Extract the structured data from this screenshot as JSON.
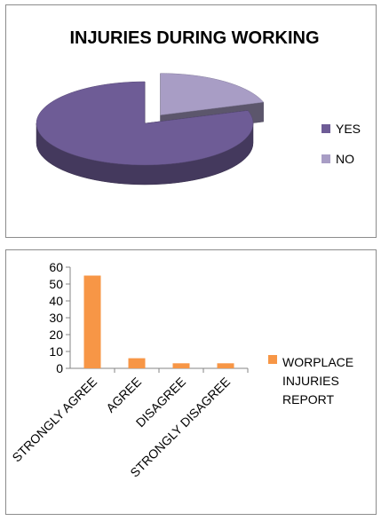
{
  "chart_data": [
    {
      "type": "pie",
      "title": "INJURIES DURING WORKING",
      "categories": [
        "YES",
        "NO"
      ],
      "values": [
        80,
        20
      ],
      "legend_position": "right",
      "colors": [
        "#6e5c96",
        "#a89dc5"
      ],
      "style": "3d-exploded"
    },
    {
      "type": "bar",
      "categories": [
        "STRONGLY AGREE",
        "AGREE",
        "DISAGREE",
        "STRONGLY DISAGREE"
      ],
      "series": [
        {
          "name": "WORPLACE INJURIES REPORT",
          "values": [
            55,
            6,
            3,
            3
          ]
        }
      ],
      "ylim": [
        0,
        60
      ],
      "yticks": [
        0,
        10,
        20,
        30,
        40,
        50,
        60
      ],
      "legend_position": "right",
      "grid": false,
      "colors": [
        "#f79646"
      ]
    }
  ],
  "pie_legend": {
    "items": [
      {
        "label": "YES",
        "color": "#6e5c96"
      },
      {
        "label": "NO",
        "color": "#a89dc5"
      }
    ]
  },
  "bar_legend": {
    "lines": [
      "WORPLACE",
      "INJURIES",
      "REPORT"
    ],
    "color": "#f79646"
  }
}
